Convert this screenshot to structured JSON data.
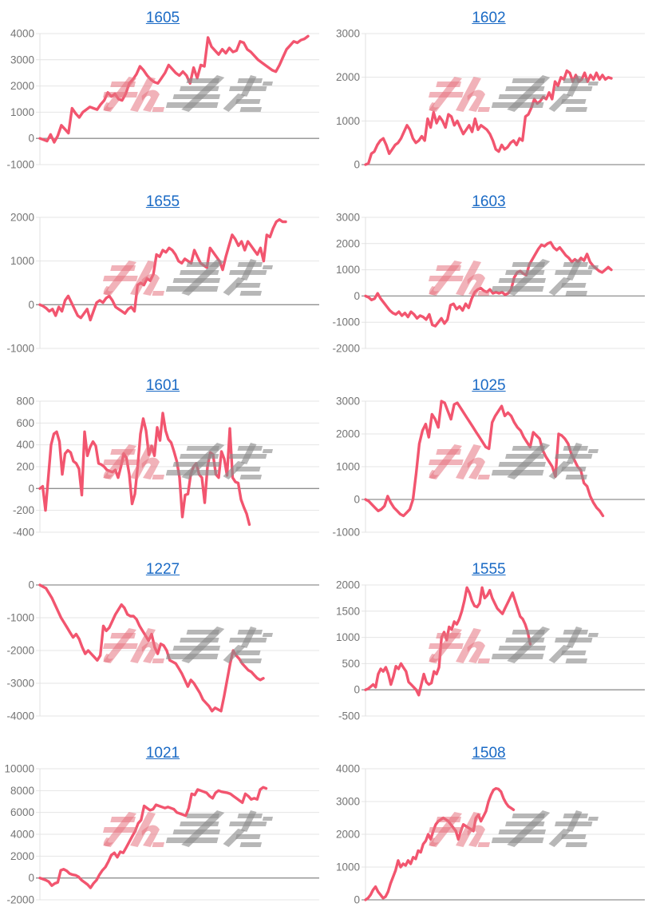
{
  "page": {
    "background": "#ffffff",
    "description": "Grid of 10 cumulative payout line charts, 2 columns x 5 rows, each titled with a clickable machine number"
  },
  "colors": {
    "series_line": "#F2556F",
    "title_link": "#1A6AC5",
    "grid_line": "#E4E4E4",
    "zero_line": "#909090",
    "axis_line": "#E0E0E0",
    "tick_label": "#757575",
    "watermark_pink": "#E5737F",
    "watermark_gray": "#8A8A8A"
  },
  "watermark": {
    "pink_part": "みん",
    "gray_part": "stylized speed-line glyphs",
    "position": "center of every plot"
  },
  "chart_data": [
    {
      "type": "line",
      "title": "1605",
      "y_ticks": [
        4000,
        3000,
        2000,
        1000,
        0,
        -1000
      ],
      "y_max": 4000,
      "y_min": -1000,
      "x_end_frac": 0.96,
      "legend": "none",
      "grid": true,
      "values": [
        0,
        -50,
        -100,
        150,
        -150,
        100,
        500,
        350,
        200,
        1150,
        950,
        800,
        1000,
        1100,
        1200,
        1150,
        1100,
        1300,
        1450,
        1750,
        1600,
        1700,
        1500,
        1450,
        1700,
        2100,
        2250,
        2450,
        2750,
        2600,
        2400,
        2250,
        2150,
        2100,
        2300,
        2500,
        2800,
        2650,
        2500,
        2400,
        2550,
        2400,
        2100,
        2700,
        2300,
        2800,
        2750,
        3850,
        3500,
        3350,
        3200,
        3400,
        3250,
        3450,
        3300,
        3350,
        3700,
        3650,
        3400,
        3300,
        3150,
        3000,
        2900,
        2800,
        2700,
        2600,
        2550,
        2800,
        3100,
        3400,
        3550,
        3700,
        3650,
        3750,
        3800,
        3900
      ]
    },
    {
      "type": "line",
      "title": "1602",
      "y_ticks": [
        3000,
        2000,
        1000,
        0
      ],
      "y_max": 3000,
      "y_min": 0,
      "x_end_frac": 0.88,
      "legend": "none",
      "grid": true,
      "values": [
        0,
        30,
        250,
        300,
        450,
        550,
        600,
        450,
        250,
        350,
        450,
        500,
        600,
        750,
        900,
        800,
        600,
        500,
        550,
        650,
        550,
        1050,
        850,
        1200,
        950,
        1100,
        1000,
        850,
        1150,
        1100,
        900,
        1000,
        850,
        700,
        800,
        900,
        750,
        1050,
        800,
        900,
        850,
        800,
        700,
        550,
        350,
        300,
        450,
        350,
        400,
        500,
        550,
        450,
        600,
        550,
        1100,
        1150,
        1300,
        1500,
        1400,
        1450,
        1550,
        1500,
        1650,
        1500,
        1900,
        1800,
        2000,
        1950,
        2150,
        2100,
        1900,
        2050,
        1900,
        1950,
        2100,
        1900,
        2050,
        1950,
        2100,
        1950,
        2050,
        1950,
        2000,
        1975
      ]
    },
    {
      "type": "line",
      "title": "1655",
      "y_ticks": [
        2000,
        1000,
        0,
        -1000
      ],
      "y_max": 2000,
      "y_min": -1000,
      "x_end_frac": 0.88,
      "legend": "none",
      "grid": true,
      "values": [
        0,
        -30,
        -80,
        -150,
        -100,
        -250,
        -50,
        -150,
        100,
        200,
        50,
        -100,
        -250,
        -300,
        -200,
        -100,
        -350,
        -150,
        50,
        100,
        50,
        150,
        200,
        100,
        -50,
        -100,
        -150,
        -200,
        -100,
        -50,
        -150,
        450,
        500,
        450,
        600,
        550,
        700,
        1150,
        1100,
        1250,
        1200,
        1300,
        1250,
        1150,
        1000,
        950,
        1050,
        1000,
        950,
        1250,
        1100,
        950,
        900,
        850,
        1300,
        1200,
        1100,
        1000,
        800,
        1100,
        1350,
        1600,
        1500,
        1350,
        1450,
        1250,
        1450,
        1350,
        1250,
        1150,
        1300,
        1000,
        1600,
        1550,
        1750,
        1900,
        1950,
        1900,
        1900
      ]
    },
    {
      "type": "line",
      "title": "1603",
      "y_ticks": [
        3000,
        2000,
        1000,
        0,
        -1000,
        -2000
      ],
      "y_max": 3000,
      "y_min": -2000,
      "x_end_frac": 0.88,
      "legend": "none",
      "grid": true,
      "values": [
        0,
        -50,
        -150,
        -100,
        100,
        -100,
        -250,
        -400,
        -550,
        -650,
        -700,
        -600,
        -750,
        -650,
        -800,
        -600,
        -700,
        -850,
        -750,
        -800,
        -900,
        -700,
        -1100,
        -1150,
        -1000,
        -850,
        -1050,
        -900,
        -350,
        -300,
        -500,
        -400,
        -550,
        -300,
        -450,
        -100,
        150,
        250,
        300,
        200,
        150,
        250,
        100,
        150,
        100,
        150,
        50,
        100,
        250,
        700,
        900,
        950,
        850,
        800,
        1200,
        1400,
        1600,
        1800,
        1950,
        1900,
        2000,
        2050,
        1850,
        1750,
        1850,
        1700,
        1550,
        1450,
        1300,
        1400,
        1300,
        1450,
        1350,
        1600,
        1300,
        1150,
        1050,
        950,
        900,
        1000,
        1100,
        1000
      ]
    },
    {
      "type": "line",
      "title": "1601",
      "y_ticks": [
        800,
        600,
        400,
        200,
        0,
        -200,
        -400
      ],
      "y_max": 800,
      "y_min": -400,
      "x_end_frac": 0.75,
      "legend": "none",
      "grid": true,
      "values": [
        0,
        20,
        -200,
        100,
        400,
        500,
        520,
        430,
        130,
        320,
        350,
        330,
        250,
        230,
        180,
        -60,
        520,
        300,
        380,
        430,
        390,
        230,
        220,
        200,
        170,
        160,
        150,
        170,
        100,
        200,
        320,
        280,
        130,
        -140,
        -50,
        200,
        500,
        640,
        530,
        310,
        390,
        300,
        560,
        440,
        690,
        530,
        450,
        420,
        340,
        250,
        100,
        -260,
        -60,
        -50,
        130,
        200,
        230,
        130,
        100,
        -130,
        200,
        330,
        310,
        130,
        100,
        340,
        270,
        120,
        550,
        100,
        60,
        50,
        -100,
        -170,
        -230,
        -330
      ]
    },
    {
      "type": "line",
      "title": "1025",
      "y_ticks": [
        3000,
        2000,
        1000,
        0,
        -1000
      ],
      "y_max": 3000,
      "y_min": -1000,
      "x_end_frac": 0.85,
      "legend": "none",
      "grid": true,
      "values": [
        0,
        -50,
        -150,
        -250,
        -350,
        -300,
        -200,
        100,
        -100,
        -250,
        -350,
        -450,
        -500,
        -400,
        -300,
        0,
        800,
        1700,
        2100,
        2300,
        1900,
        2600,
        2450,
        2200,
        3000,
        2950,
        2700,
        2450,
        2900,
        2950,
        2800,
        2650,
        2500,
        2350,
        2200,
        2050,
        1900,
        1750,
        1600,
        1550,
        2350,
        2550,
        2700,
        2850,
        2550,
        2650,
        2550,
        2350,
        2200,
        2100,
        1900,
        1750,
        1600,
        2050,
        1950,
        1850,
        1500,
        1300,
        1150,
        1000,
        700,
        2000,
        1950,
        1850,
        1700,
        1400,
        1200,
        1000,
        900,
        500,
        400,
        100,
        -100,
        -250,
        -350,
        -500
      ]
    },
    {
      "type": "line",
      "title": "1227",
      "y_ticks": [
        0,
        -1000,
        -2000,
        -3000,
        -4000
      ],
      "y_max": 0,
      "y_min": -4000,
      "x_end_frac": 0.8,
      "legend": "none",
      "grid": true,
      "values": [
        0,
        -50,
        -100,
        -250,
        -400,
        -600,
        -800,
        -1000,
        -1150,
        -1300,
        -1450,
        -1600,
        -1500,
        -1650,
        -1900,
        -2100,
        -2000,
        -2100,
        -2200,
        -2300,
        -2150,
        -1250,
        -1400,
        -1300,
        -1100,
        -900,
        -750,
        -600,
        -700,
        -900,
        -950,
        -950,
        -1050,
        -1250,
        -1400,
        -1550,
        -1700,
        -1500,
        -1900,
        -2100,
        -1800,
        -1850,
        -2000,
        -2300,
        -2350,
        -2400,
        -2550,
        -2700,
        -2900,
        -3100,
        -2900,
        -3000,
        -3150,
        -3300,
        -3500,
        -3600,
        -3700,
        -3850,
        -3750,
        -3800,
        -3850,
        -3400,
        -2900,
        -2400,
        -2000,
        -2150,
        -2250,
        -2400,
        -2500,
        -2600,
        -2650,
        -2750,
        -2850,
        -2900,
        -2850
      ]
    },
    {
      "type": "line",
      "title": "1555",
      "y_ticks": [
        2000,
        1500,
        1000,
        500,
        0,
        -500
      ],
      "y_max": 2000,
      "y_min": -500,
      "x_end_frac": 0.59,
      "legend": "none",
      "grid": true,
      "values": [
        0,
        20,
        60,
        100,
        50,
        300,
        400,
        350,
        430,
        300,
        100,
        250,
        450,
        400,
        500,
        420,
        350,
        150,
        100,
        50,
        0,
        -100,
        100,
        300,
        150,
        100,
        130,
        350,
        300,
        430,
        1000,
        1100,
        950,
        1200,
        1150,
        1300,
        1250,
        1350,
        1500,
        1700,
        1950,
        1850,
        1700,
        1600,
        1580,
        1650,
        1950,
        1750,
        1800,
        1900,
        1750,
        1650,
        1550,
        1500,
        1450,
        1550,
        1650,
        1750,
        1850,
        1700,
        1550,
        1400,
        1350,
        1250,
        1100,
        870
      ]
    },
    {
      "type": "line",
      "title": "1021",
      "y_ticks": [
        10000,
        8000,
        6000,
        4000,
        2000,
        0,
        -2000
      ],
      "y_max": 10000,
      "y_min": -2000,
      "x_end_frac": 0.81,
      "legend": "none",
      "grid": true,
      "values": [
        0,
        -100,
        -200,
        -350,
        -700,
        -500,
        -400,
        700,
        800,
        650,
        400,
        300,
        250,
        100,
        -200,
        -400,
        -600,
        -900,
        -500,
        -200,
        300,
        700,
        1000,
        1500,
        2100,
        2300,
        1900,
        2400,
        2300,
        2800,
        3300,
        3800,
        4300,
        5000,
        5300,
        6600,
        6400,
        6200,
        6300,
        6700,
        6600,
        6500,
        6400,
        6500,
        6400,
        6300,
        6000,
        5900,
        5800,
        5700,
        6400,
        7700,
        7600,
        8100,
        8000,
        7900,
        7800,
        7500,
        7300,
        7800,
        8000,
        7900,
        7850,
        7800,
        7700,
        7500,
        7300,
        7100,
        6900,
        7700,
        7500,
        7200,
        7300,
        7200,
        8100,
        8300,
        8200
      ]
    },
    {
      "type": "line",
      "title": "1508",
      "y_ticks": [
        4000,
        3000,
        2000,
        1000,
        0
      ],
      "y_max": 4000,
      "y_min": 0,
      "x_end_frac": 0.53,
      "legend": "none",
      "grid": true,
      "values": [
        0,
        50,
        150,
        300,
        400,
        250,
        150,
        50,
        100,
        250,
        500,
        700,
        900,
        1200,
        1000,
        1100,
        1050,
        1200,
        1100,
        1300,
        1250,
        1500,
        1450,
        1700,
        1800,
        2000,
        1850,
        2100,
        2300,
        2400,
        2450,
        2500,
        2450,
        2400,
        2300,
        2200,
        2100,
        1850,
        2100,
        2300,
        2250,
        2200,
        2150,
        2100,
        2500,
        2600,
        2400,
        2550,
        2700,
        3000,
        3200,
        3350,
        3400,
        3380,
        3300,
        3100,
        2950,
        2850,
        2800,
        2750
      ]
    }
  ]
}
